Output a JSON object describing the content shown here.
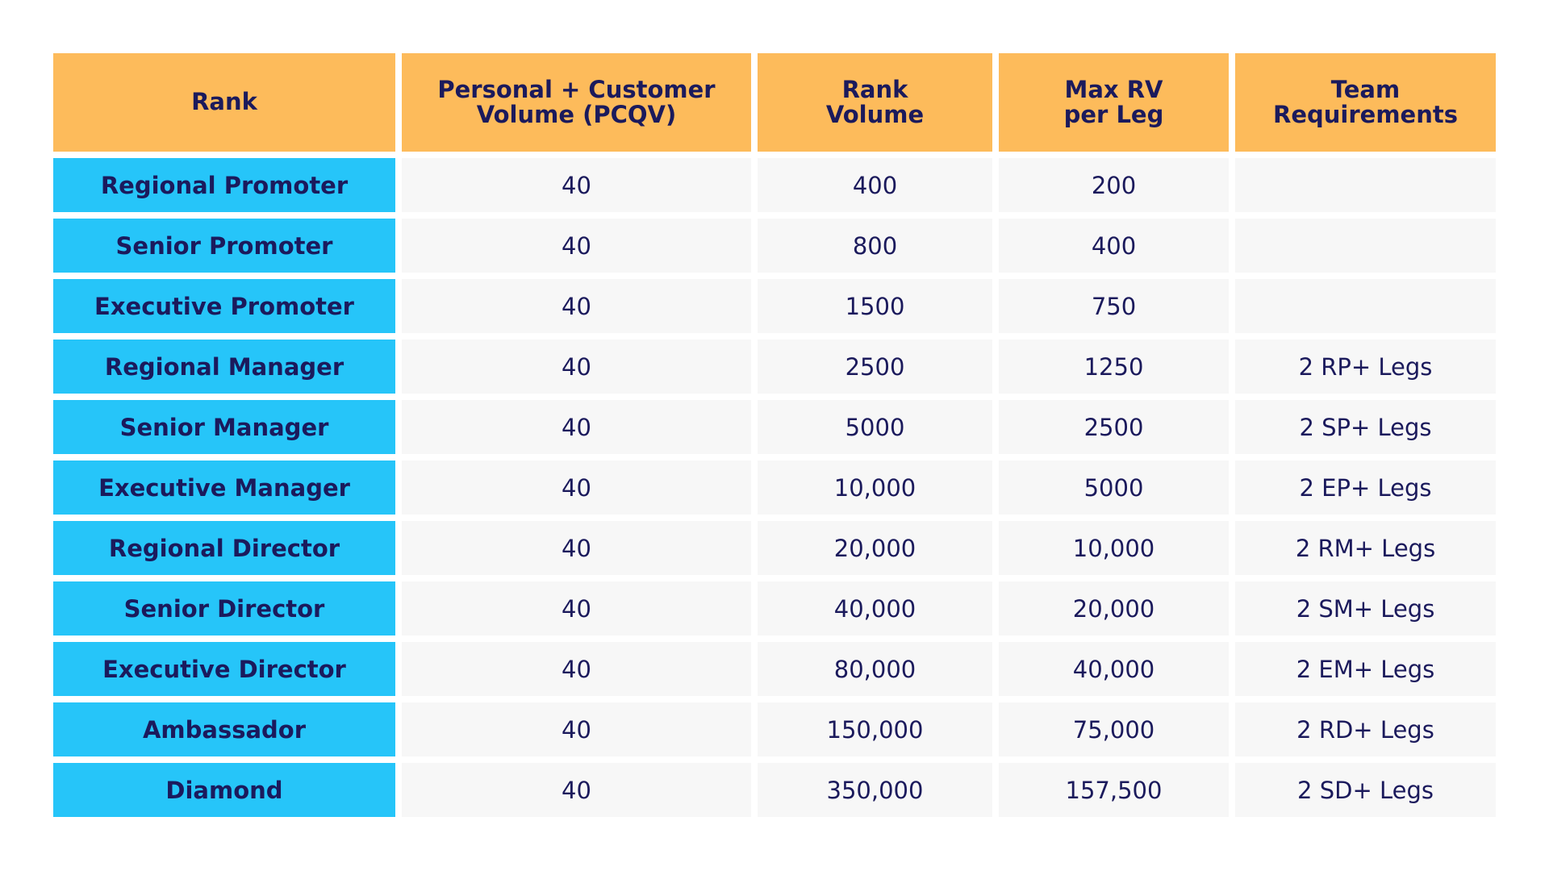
{
  "table": {
    "header": [
      "Rank",
      "Personal + Customer\nVolume (PCQV)",
      "Rank\nVolume",
      "Max RV\nper Leg",
      "Team\nRequirements"
    ],
    "rows": [
      [
        "Regional Promoter",
        "40",
        "400",
        "200",
        null
      ],
      [
        "Senior Promoter",
        "40",
        "800",
        "400",
        null
      ],
      [
        "Executive Promoter",
        "40",
        "1500",
        "750",
        null
      ],
      [
        "Regional Manager",
        "40",
        "2500",
        "1250",
        "2 RP+ Legs"
      ],
      [
        "Senior Manager",
        "40",
        "5000",
        "2500",
        "2 SP+ Legs"
      ],
      [
        "Executive Manager",
        "40",
        "10,000",
        "5000",
        "2 EP+ Legs"
      ],
      [
        "Regional Director",
        "40",
        "20,000",
        "10,000",
        "2 RM+ Legs"
      ],
      [
        "Senior Director",
        "40",
        "40,000",
        "20,000",
        "2 SM+ Legs"
      ],
      [
        "Executive Director",
        "40",
        "80,000",
        "40,000",
        "2 EM+ Legs"
      ],
      [
        "Ambassador",
        "40",
        "150,000",
        "75,000",
        "2 RD+ Legs"
      ],
      [
        "Diamond",
        "40",
        "350,000",
        "157,500",
        "2 SD+ Legs"
      ]
    ]
  }
}
